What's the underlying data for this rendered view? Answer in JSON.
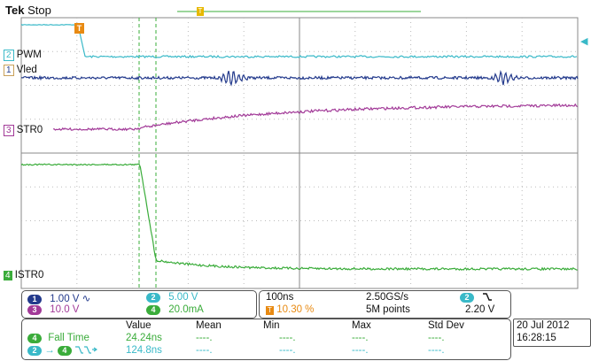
{
  "header": {
    "brand": "Tek",
    "status": "Stop",
    "trigger_marker": "T",
    "trigger_pos_marker": "T"
  },
  "channels": [
    {
      "num": "2",
      "label": "PWM",
      "color": "#39b9c8"
    },
    {
      "num": "1",
      "label": "Vled",
      "color": "#233a8c"
    },
    {
      "num": "3",
      "label": "STR0",
      "color": "#a23a98"
    },
    {
      "num": "4",
      "label": "ISTR0",
      "color": "#3aac3a"
    }
  ],
  "vertical_settings": {
    "ch1": {
      "num": "1",
      "value": "1.00 V",
      "coupling_icon": "∿",
      "color": "#233a8c"
    },
    "ch2": {
      "num": "2",
      "value": "5.00 V",
      "color": "#39b9c8"
    },
    "ch3": {
      "num": "3",
      "value": "10.0 V",
      "color": "#a23a98"
    },
    "ch4": {
      "num": "4",
      "value": "20.0mA",
      "color": "#3aac3a"
    }
  },
  "horizontal": {
    "timebase": "100ns",
    "sample_rate": "2.50GS/s",
    "trigger_position": "10.30 %",
    "record_length": "5M points",
    "trigger_channel": "2",
    "trigger_slope_icon": "falling-edge",
    "trigger_level": "2.20 V"
  },
  "measurements": {
    "columns": [
      "Value",
      "Mean",
      "Min",
      "Max",
      "Std Dev"
    ],
    "rows": [
      {
        "source": "4",
        "name": "Fall Time",
        "value": "24.24ns",
        "mean": "----.",
        "min": "----.",
        "max": "----.",
        "std": "----.",
        "color": "#3aac3a"
      },
      {
        "source": "2",
        "source2": "4",
        "name": "→",
        "value": "124.8ns",
        "mean": "----.",
        "min": "----.",
        "max": "----.",
        "std": "----.",
        "color": "#39b9c8"
      }
    ]
  },
  "datetime": {
    "date": "20 Jul  2012",
    "time": "16:28:15"
  }
}
